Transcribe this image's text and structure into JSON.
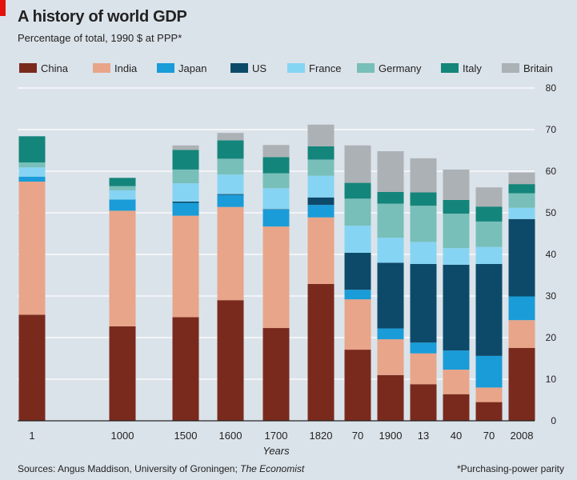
{
  "header": {
    "title": "A history of world GDP",
    "subtitle": "Percentage of total, 1990 $  at PPP*"
  },
  "footer": {
    "sources_label": "Sources: Angus Maddison, University of Groningen;",
    "sources_pub": "The Economist",
    "note": "*Purchasing-power parity"
  },
  "chart_data": {
    "type": "bar",
    "stacked": true,
    "title": "A history of world GDP",
    "subtitle": "Percentage of total, 1990 $  at PPP*",
    "xlabel": "Years",
    "ylabel": "",
    "ylim": [
      0,
      80
    ],
    "yticks": [
      0,
      10,
      20,
      30,
      40,
      50,
      60,
      70,
      80
    ],
    "y_axis_side": "right",
    "legend_position": "top",
    "categories": [
      "1",
      "1000",
      "1500",
      "1600",
      "1700",
      "1820",
      "70",
      "1900",
      "13",
      "40",
      "70",
      "2008"
    ],
    "series": [
      {
        "name": "China",
        "color": "#7a2a1d",
        "values": [
          25.5,
          22.7,
          24.9,
          29.0,
          22.3,
          32.9,
          17.1,
          11.0,
          8.8,
          6.4,
          4.5,
          17.5
        ]
      },
      {
        "name": "India",
        "color": "#e8a589",
        "values": [
          32.0,
          27.8,
          24.4,
          22.4,
          24.4,
          16.0,
          12.1,
          8.6,
          7.4,
          5.9,
          3.5,
          6.7
        ]
      },
      {
        "name": "Japan",
        "color": "#1a9cd8",
        "values": [
          1.2,
          2.7,
          3.1,
          2.9,
          4.1,
          3.0,
          2.3,
          2.6,
          2.6,
          4.6,
          7.6,
          5.7
        ]
      },
      {
        "name": "US",
        "color": "#0d4a69",
        "values": [
          0.0,
          0.0,
          0.3,
          0.2,
          0.1,
          1.8,
          8.9,
          15.8,
          18.9,
          20.6,
          22.1,
          18.6
        ]
      },
      {
        "name": "France",
        "color": "#86d4f3",
        "values": [
          2.2,
          2.2,
          4.4,
          4.7,
          5.0,
          5.2,
          6.5,
          6.0,
          5.3,
          4.0,
          4.1,
          2.7
        ]
      },
      {
        "name": "Germany",
        "color": "#78bfb9",
        "values": [
          1.2,
          1.0,
          3.3,
          3.8,
          3.6,
          3.9,
          6.5,
          8.2,
          8.7,
          8.3,
          6.1,
          3.5
        ]
      },
      {
        "name": "Italy",
        "color": "#14857a",
        "values": [
          6.3,
          2.0,
          4.7,
          4.4,
          3.9,
          3.2,
          3.8,
          2.8,
          3.2,
          3.3,
          3.6,
          2.2
        ]
      },
      {
        "name": "Britain",
        "color": "#acb1b5",
        "values": [
          0.0,
          0.0,
          1.1,
          1.8,
          2.9,
          5.2,
          9.0,
          9.8,
          8.2,
          7.3,
          4.6,
          2.8
        ]
      }
    ]
  }
}
